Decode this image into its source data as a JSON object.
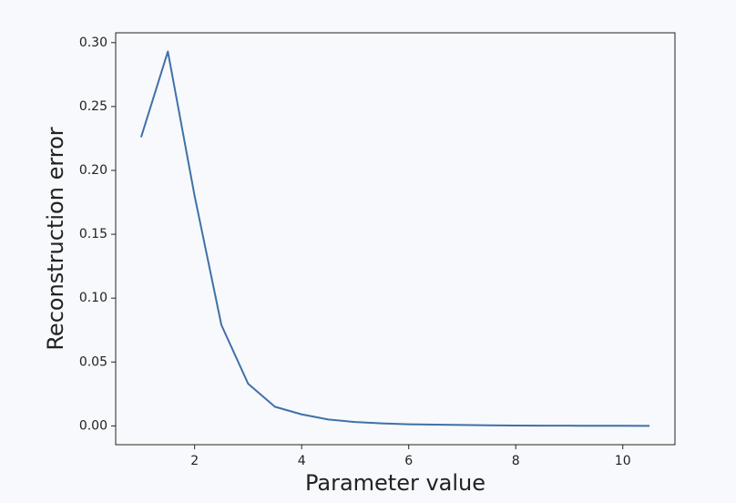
{
  "chart_data": {
    "type": "line",
    "xlabel": "Parameter value",
    "ylabel": "Reconstruction error",
    "x": [
      1,
      1.5,
      2,
      2.5,
      3,
      3.5,
      4,
      4.5,
      5,
      5.5,
      6,
      6.5,
      7,
      7.5,
      8,
      8.5,
      9,
      9.5,
      10,
      10.5
    ],
    "series": [
      {
        "color": "#4170a8",
        "values": [
          0.226,
          0.293,
          0.18,
          0.079,
          0.033,
          0.015,
          0.009,
          0.005,
          0.003,
          0.002,
          0.0013,
          0.001,
          0.0007,
          0.0005,
          0.0003,
          0.0002,
          0.00015,
          0.0001,
          7e-05,
          5e-05
        ]
      }
    ],
    "xlim": [
      0.525,
      10.975
    ],
    "xticks": [
      2,
      4,
      6,
      8,
      10
    ],
    "ylim": [
      -0.0147,
      0.3077
    ],
    "yticks": [
      {
        "value": 0,
        "label": "0.00"
      },
      {
        "value": 0.05,
        "label": "0.05"
      },
      {
        "value": 0.1,
        "label": "0.10"
      },
      {
        "value": 0.15,
        "label": "0.15"
      },
      {
        "value": 0.2,
        "label": "0.20"
      },
      {
        "value": 0.25,
        "label": "0.25"
      },
      {
        "value": 0.3,
        "label": "0.30"
      }
    ],
    "grid": false
  }
}
